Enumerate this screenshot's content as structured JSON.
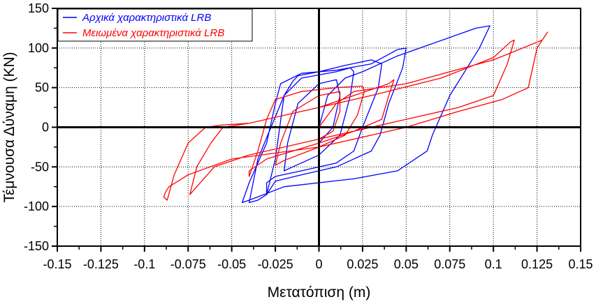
{
  "chart_data": {
    "type": "line",
    "title": "",
    "xlabel": "Μετατόπιση (m)",
    "ylabel": "Τέμνουσα Δύναμη (KN)",
    "xlim": [
      -0.15,
      0.15
    ],
    "ylim": [
      -150,
      150
    ],
    "x_ticks": [
      -0.15,
      -0.125,
      -0.1,
      -0.075,
      -0.05,
      -0.025,
      0,
      0.025,
      0.05,
      0.075,
      0.1,
      0.125,
      0.15
    ],
    "x_tick_labels": [
      "-0.15",
      "-0.125",
      "-0.1",
      "-0.075",
      "-0.05",
      "-0.025",
      "0",
      "0.025",
      "0.05",
      "0.075",
      "0.1",
      "0.125",
      "0.15"
    ],
    "y_ticks": [
      -150,
      -100,
      -50,
      0,
      50,
      100,
      150
    ],
    "y_tick_labels": [
      "-150",
      "-100",
      "-50",
      "0",
      "50",
      "100",
      "150"
    ],
    "grid": true,
    "legend_position": "top-left",
    "colors": {
      "blue": "#0000ff",
      "red": "#ff0000"
    },
    "series": [
      {
        "name": "Αρχικά χαρακτηριστικά LRB",
        "color": "#0000ff",
        "x": [
          0,
          0.005,
          0.015,
          0.025,
          0.045,
          0.09,
          0.098,
          0.092,
          0.075,
          0.065,
          0.062,
          0.045,
          0.02,
          -0.02,
          -0.04,
          -0.044,
          -0.04,
          -0.03,
          -0.025,
          -0.022,
          -0.01,
          0.01,
          0.03,
          0.045,
          0.05,
          0.048,
          0.04,
          0.035,
          0.03,
          0.01,
          -0.01,
          -0.025,
          -0.03,
          -0.035,
          -0.04,
          -0.035,
          -0.02,
          -0.015,
          -0.012,
          0,
          0.015,
          0.03,
          0.036,
          0.034,
          0.025,
          0.02,
          0.01,
          -0.01,
          -0.025,
          -0.03,
          -0.03,
          -0.025,
          -0.02,
          -0.01,
          0.01,
          0.018,
          0.02,
          0.018,
          0.012,
          0,
          -0.015,
          -0.02,
          -0.018,
          -0.012,
          0,
          0.01,
          0.012,
          0.008,
          0
        ],
        "y": [
          0,
          40,
          62,
          70,
          90,
          125,
          128,
          100,
          40,
          -10,
          -30,
          -55,
          -65,
          -75,
          -92,
          -95,
          -70,
          -20,
          30,
          55,
          68,
          72,
          80,
          98,
          100,
          75,
          30,
          -10,
          -30,
          -50,
          -60,
          -68,
          -85,
          -92,
          -95,
          -40,
          40,
          58,
          65,
          70,
          78,
          85,
          80,
          50,
          0,
          -30,
          -45,
          -55,
          -62,
          -70,
          -85,
          -40,
          40,
          62,
          70,
          75,
          70,
          40,
          -10,
          -35,
          -50,
          -55,
          -20,
          30,
          55,
          60,
          40,
          0,
          -20
        ]
      },
      {
        "name": "Μειωμένα χαρακτηριστικά LRB",
        "color": "#ff0000",
        "x": [
          0,
          0.01,
          0.02,
          0.05,
          0.1,
          0.128,
          0.131,
          0.125,
          0.12,
          0.105,
          0.08,
          0.05,
          0,
          -0.05,
          -0.075,
          -0.086,
          -0.088,
          -0.089,
          -0.087,
          -0.083,
          -0.075,
          -0.065,
          -0.055,
          -0.04,
          -0.02,
          0,
          0.03,
          0.07,
          0.1,
          0.11,
          0.112,
          0.108,
          0.1,
          0.08,
          0.05,
          0,
          -0.04,
          -0.06,
          -0.074,
          -0.07,
          -0.062,
          -0.055,
          -0.04,
          -0.02,
          0,
          0.02,
          0.04,
          0.043,
          0.04,
          0.036,
          0.02,
          0,
          -0.03,
          -0.04,
          -0.04,
          -0.035,
          -0.03,
          -0.025,
          -0.01,
          0.01,
          0.025,
          0.026,
          0.022,
          0.015,
          0,
          -0.02,
          -0.025,
          -0.022,
          -0.015,
          0,
          0.012,
          0.012,
          0.008,
          0
        ],
        "y": [
          0,
          30,
          45,
          55,
          85,
          110,
          120,
          100,
          50,
          35,
          20,
          0,
          -25,
          -40,
          -60,
          -75,
          -82,
          -88,
          -92,
          -60,
          -20,
          0,
          3,
          5,
          15,
          25,
          40,
          62,
          88,
          108,
          110,
          80,
          40,
          25,
          10,
          -15,
          -35,
          -50,
          -85,
          -50,
          -20,
          0,
          5,
          15,
          25,
          40,
          55,
          60,
          40,
          10,
          -5,
          -20,
          -40,
          -55,
          -62,
          -30,
          10,
          35,
          45,
          50,
          52,
          45,
          15,
          -10,
          -25,
          -42,
          -48,
          -20,
          20,
          40,
          45,
          20,
          -5,
          -15
        ]
      }
    ]
  }
}
